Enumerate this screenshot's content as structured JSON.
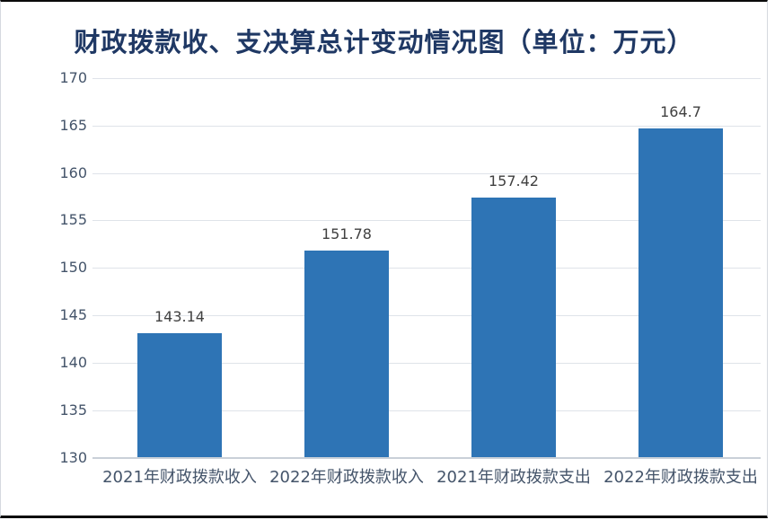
{
  "title": {
    "text": "财政拨款收、支决算总计变动情况图（单位：万元）"
  },
  "chart_data": {
    "type": "bar",
    "title": "财政拨款收、支决算总计变动情况图（单位：万元）",
    "unit_label": "万元",
    "categories": [
      "2021年财政拨款收入",
      "2022年财政拨款收入",
      "2021年财政拨款支出",
      "2022年财政拨款支出"
    ],
    "values": [
      143.14,
      151.78,
      157.42,
      164.7
    ],
    "value_labels": [
      "143.14",
      "151.78",
      "157.42",
      "164.7"
    ],
    "ylim": [
      130,
      170
    ],
    "ytick_step": 5,
    "ytick_labels": [
      "130",
      "135",
      "140",
      "145",
      "150",
      "155",
      "160",
      "165",
      "170"
    ],
    "xlabel": "",
    "ylabel": "",
    "grid": true,
    "legend": "none",
    "data_labels_shown": true
  },
  "colors": {
    "bar": "#2E74B5",
    "title_text": "#1F3864",
    "axis_tick_text": "#44546A",
    "category_text": "#44546A",
    "data_label_text": "#404040",
    "gridline": "#DFE3E9",
    "axis_line": "#C9D0D8",
    "top_bottom_border": "#0A0A0A",
    "side_border": "#D5D9DF",
    "background": "#FFFFFF"
  }
}
